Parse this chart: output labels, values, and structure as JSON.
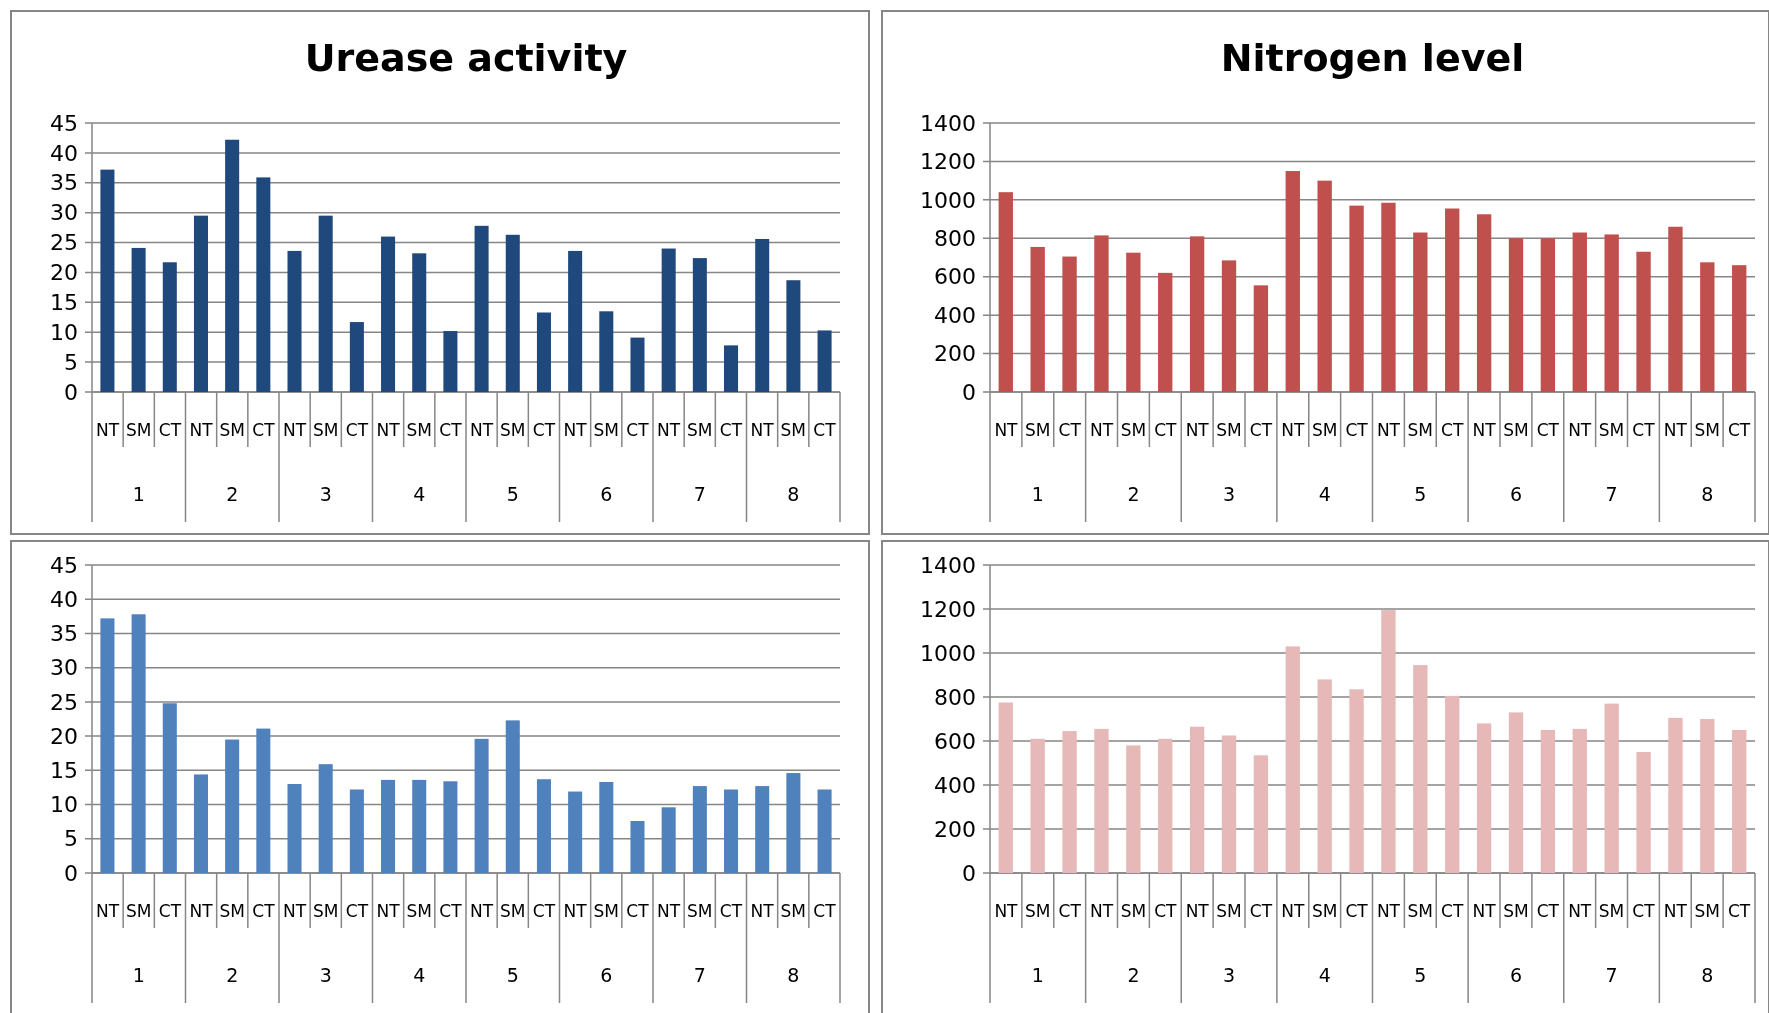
{
  "chart_data": [
    {
      "type": "bar",
      "title": "Urease activity",
      "categories": [
        "NT",
        "SM",
        "CT",
        "NT",
        "SM",
        "CT",
        "NT",
        "SM",
        "CT",
        "NT",
        "SM",
        "CT",
        "NT",
        "SM",
        "CT",
        "NT",
        "SM",
        "CT",
        "NT",
        "SM",
        "CT",
        "NT",
        "SM",
        "CT"
      ],
      "annotations": [
        "1",
        "2",
        "3",
        "4",
        "5",
        "6",
        "7",
        "8"
      ],
      "color": "#1f497d",
      "values": [
        37.2,
        24.1,
        21.7,
        29.5,
        42.2,
        35.9,
        23.6,
        29.5,
        11.7,
        26,
        23.2,
        10.2,
        27.8,
        26.3,
        13.3,
        23.6,
        13.5,
        9.1,
        24,
        22.4,
        7.8,
        25.6,
        18.7,
        10.3
      ],
      "ylim": [
        0,
        45
      ],
      "yticks": [
        0,
        5,
        10,
        15,
        20,
        25,
        30,
        35,
        40,
        45
      ],
      "grid": "y"
    },
    {
      "type": "bar",
      "title": "Nitrogen level",
      "categories": [
        "NT",
        "SM",
        "CT",
        "NT",
        "SM",
        "CT",
        "NT",
        "SM",
        "CT",
        "NT",
        "SM",
        "CT",
        "NT",
        "SM",
        "CT",
        "NT",
        "SM",
        "CT",
        "NT",
        "SM",
        "CT",
        "NT",
        "SM",
        "CT"
      ],
      "annotations": [
        "1",
        "2",
        "3",
        "4",
        "5",
        "6",
        "7",
        "8"
      ],
      "color": "#c0504d",
      "values": [
        1040,
        755,
        705,
        815,
        725,
        620,
        810,
        685,
        555,
        1150,
        1100,
        970,
        985,
        830,
        955,
        925,
        800,
        800,
        830,
        820,
        730,
        860,
        675,
        660
      ],
      "ylim": [
        0,
        1400
      ],
      "yticks": [
        0,
        200,
        400,
        600,
        800,
        1000,
        1200,
        1400
      ],
      "grid": "y"
    },
    {
      "type": "bar",
      "categories": [
        "NT",
        "SM",
        "CT",
        "NT",
        "SM",
        "CT",
        "NT",
        "SM",
        "CT",
        "NT",
        "SM",
        "CT",
        "NT",
        "SM",
        "CT",
        "NT",
        "SM",
        "CT",
        "NT",
        "SM",
        "CT",
        "NT",
        "SM",
        "CT"
      ],
      "annotations": [
        "1",
        "2",
        "3",
        "4",
        "5",
        "6",
        "7",
        "8"
      ],
      "color": "#4f81bd",
      "values": [
        37.2,
        37.8,
        24.8,
        14.4,
        19.5,
        21.1,
        13,
        15.9,
        12.2,
        13.6,
        13.6,
        13.4,
        19.6,
        22.3,
        13.7,
        11.9,
        13.3,
        7.6,
        9.6,
        12.7,
        12.2,
        12.7,
        14.6,
        12.2
      ],
      "ylim": [
        0,
        45
      ],
      "yticks": [
        0,
        5,
        10,
        15,
        20,
        25,
        30,
        35,
        40,
        45
      ],
      "grid": "y"
    },
    {
      "type": "bar",
      "categories": [
        "NT",
        "SM",
        "CT",
        "NT",
        "SM",
        "CT",
        "NT",
        "SM",
        "CT",
        "NT",
        "SM",
        "CT",
        "NT",
        "SM",
        "CT",
        "NT",
        "SM",
        "CT",
        "NT",
        "SM",
        "CT",
        "NT",
        "SM",
        "CT"
      ],
      "annotations": [
        "1",
        "2",
        "3",
        "4",
        "5",
        "6",
        "7",
        "8"
      ],
      "color": "#e6b9b8",
      "values": [
        775,
        610,
        645,
        655,
        580,
        610,
        665,
        625,
        535,
        1030,
        880,
        835,
        1195,
        945,
        805,
        680,
        730,
        650,
        655,
        770,
        550,
        705,
        700,
        650
      ],
      "ylim": [
        0,
        1400
      ],
      "yticks": [
        0,
        200,
        400,
        600,
        800,
        1000,
        1200,
        1400
      ],
      "grid": "y"
    }
  ]
}
